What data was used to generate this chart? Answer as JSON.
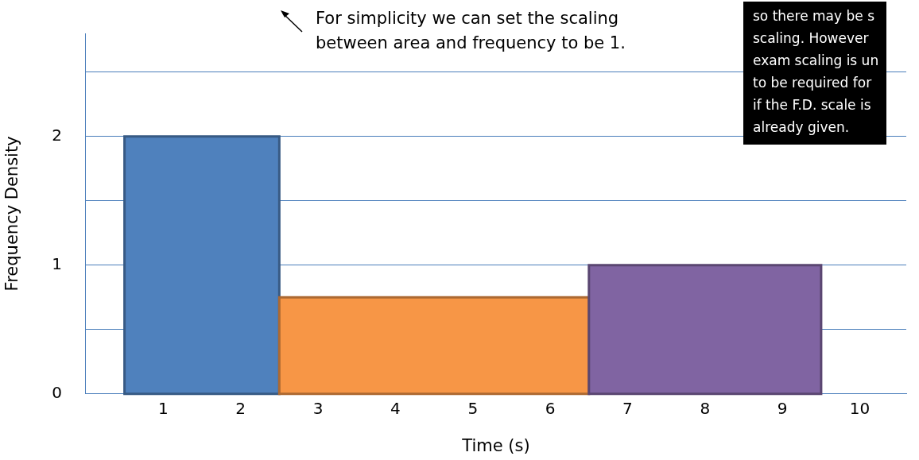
{
  "chart_data": {
    "type": "histogram",
    "xlabel": "Time (s)",
    "ylabel": "Frequency Density",
    "bins": [
      0.5,
      2.5,
      6.5,
      9.5
    ],
    "values": [
      2,
      0.75,
      1
    ],
    "colors": [
      "#4f81bd",
      "#f79646",
      "#8064a2"
    ],
    "xlim": [
      0,
      10.6
    ],
    "xticks": [
      1,
      2,
      3,
      4,
      5,
      6,
      7,
      8,
      9,
      10
    ],
    "ylim": [
      0,
      2.8
    ],
    "yticks": [
      0,
      {
        "value": 0.5,
        "label": null
      },
      1,
      {
        "value": 1.5,
        "label": null
      },
      2,
      {
        "value": 2.5,
        "label": null
      }
    ],
    "grid": "y",
    "legend": false,
    "annotations": [
      "For simplicity we can set the scaling\nbetween area and frequency to be 1.",
      "so there may be s\nscaling. However\nexam scaling is un\nto be required for\nif the F.D. scale is\nalready given."
    ]
  }
}
